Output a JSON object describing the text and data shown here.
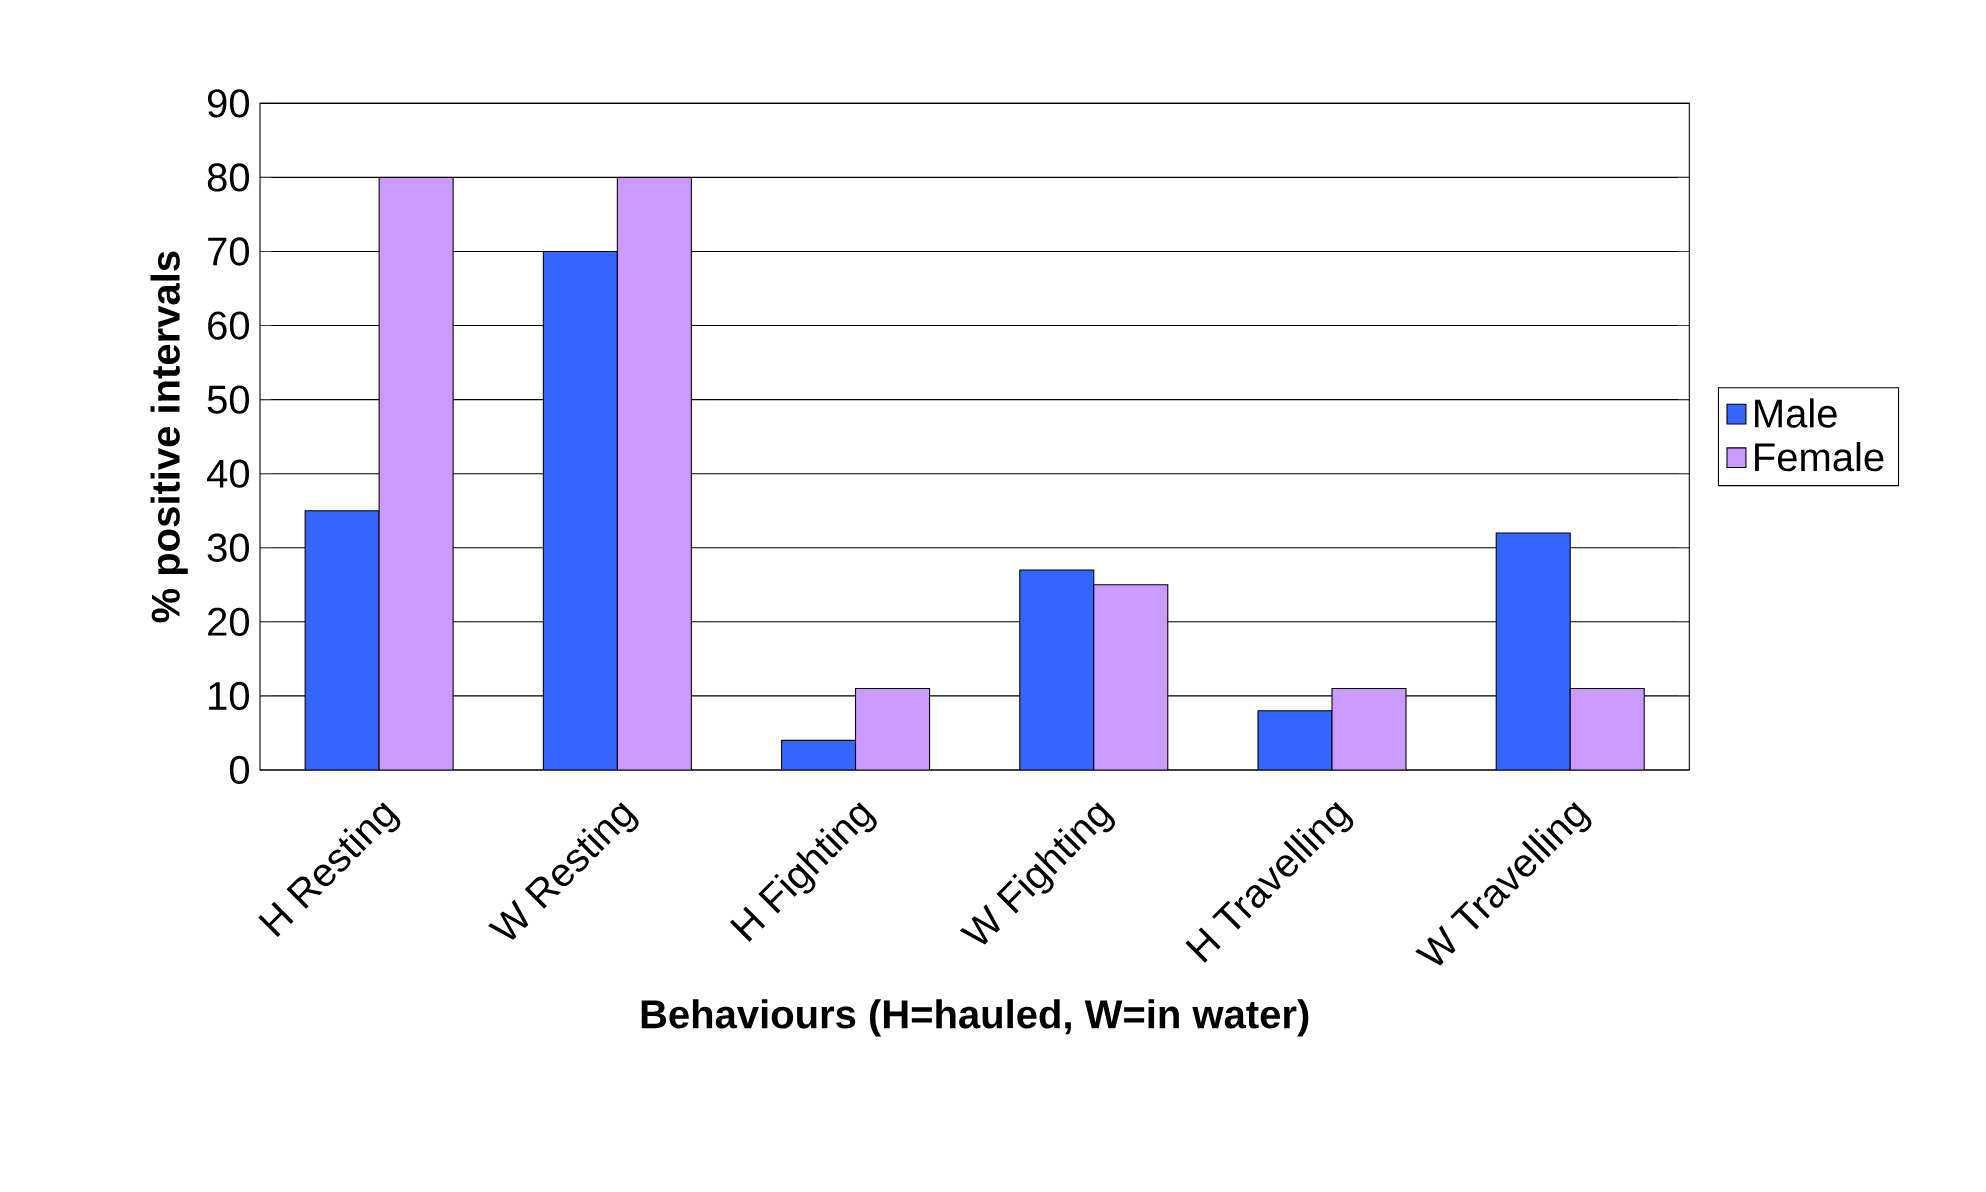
{
  "chart_data": {
    "type": "bar",
    "xlabel": "Behaviours (H=hauled, W=in water)",
    "ylabel": "% positive intervals",
    "categories": [
      "H Resting",
      "W Resting",
      "H Fighting",
      "W Fighting",
      "H Travelling",
      "W Travelling"
    ],
    "series": [
      {
        "name": "Male",
        "color": "#3366ff",
        "values": [
          35,
          70,
          4,
          27,
          8,
          32
        ]
      },
      {
        "name": "Female",
        "color": "#cc99ff",
        "values": [
          80,
          80,
          11,
          25,
          11,
          11
        ]
      }
    ],
    "ylim": [
      0,
      90
    ],
    "yticks": [
      0,
      10,
      20,
      30,
      40,
      50,
      60,
      70,
      80,
      90
    ],
    "grid": "y",
    "legend": "right"
  }
}
